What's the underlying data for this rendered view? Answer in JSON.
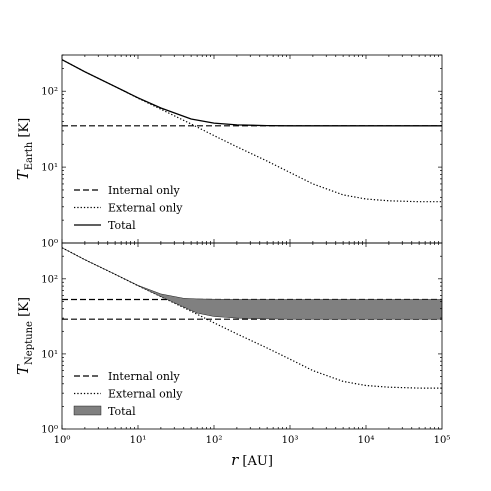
{
  "chart_data": [
    {
      "type": "line",
      "xscale": "log",
      "yscale": "log",
      "xlim": [
        1,
        100000
      ],
      "ylim": [
        1,
        300
      ],
      "ylabel": {
        "symbol": "T",
        "subscript": "Earth",
        "unit": "[K]"
      },
      "yticks": [
        {
          "value": 1,
          "label": "10⁰"
        },
        {
          "value": 10,
          "label": "10¹"
        },
        {
          "value": 100,
          "label": "10²"
        }
      ],
      "series": [
        {
          "name": "Internal only",
          "style": "dashed",
          "x": [
            1,
            100000
          ],
          "y": [
            35,
            35
          ]
        },
        {
          "name": "External only",
          "style": "dotted",
          "x": [
            1,
            2,
            5,
            10,
            20,
            50,
            100,
            200,
            500,
            1000,
            2000,
            5000,
            10000,
            20000,
            50000,
            100000
          ],
          "y": [
            260,
            180,
            115,
            81,
            58,
            37,
            26,
            18.5,
            12,
            8.5,
            6,
            4.3,
            3.8,
            3.6,
            3.5,
            3.5
          ]
        },
        {
          "name": "Total",
          "style": "solid",
          "x": [
            1,
            2,
            5,
            10,
            20,
            50,
            100,
            200,
            500,
            1000,
            10000,
            100000
          ],
          "y": [
            260,
            180,
            115,
            82,
            60,
            43,
            38,
            36,
            35.2,
            35,
            35,
            35
          ]
        }
      ],
      "legend": {
        "position": "lower-left"
      }
    },
    {
      "type": "line",
      "xscale": "log",
      "yscale": "log",
      "xlim": [
        1,
        100000
      ],
      "ylim": [
        1,
        300
      ],
      "xlabel": {
        "symbol": "r",
        "unit": "[AU]"
      },
      "ylabel": {
        "symbol": "T",
        "subscript": "Neptune",
        "unit": "[K]"
      },
      "xticks": [
        {
          "value": 1,
          "label": "10⁰"
        },
        {
          "value": 10,
          "label": "10¹"
        },
        {
          "value": 100,
          "label": "10²"
        },
        {
          "value": 1000,
          "label": "10³"
        },
        {
          "value": 10000,
          "label": "10⁴"
        },
        {
          "value": 100000,
          "label": "10⁵"
        }
      ],
      "yticks": [
        {
          "value": 1,
          "label": "10⁰"
        },
        {
          "value": 10,
          "label": "10¹"
        },
        {
          "value": 100,
          "label": "10²"
        }
      ],
      "series": [
        {
          "name": "Internal only",
          "style": "dashed",
          "bands": [
            {
              "x": [
                1,
                100000
              ],
              "y": [
                53,
                53
              ]
            },
            {
              "x": [
                1,
                100000
              ],
              "y": [
                29,
                29
              ]
            }
          ]
        },
        {
          "name": "External only",
          "style": "dotted",
          "x": [
            1,
            2,
            5,
            10,
            20,
            50,
            100,
            200,
            500,
            1000,
            2000,
            5000,
            10000,
            20000,
            50000,
            100000
          ],
          "y": [
            260,
            180,
            115,
            81,
            58,
            37,
            26,
            18.5,
            12,
            8.5,
            6,
            4.3,
            3.8,
            3.6,
            3.5,
            3.5
          ]
        },
        {
          "name": "Total",
          "style": "filled",
          "color": "#808080",
          "x": [
            1,
            2,
            5,
            10,
            20,
            40,
            60,
            100,
            200,
            500,
            1000,
            10000,
            100000
          ],
          "upper": [
            260,
            180,
            115,
            82,
            63,
            55,
            54,
            53.5,
            53,
            53,
            53,
            53,
            53
          ],
          "lower": [
            260,
            180,
            115,
            81,
            58,
            42,
            35,
            31.5,
            30,
            29.3,
            29,
            29,
            29
          ]
        }
      ],
      "legend": {
        "position": "lower-left"
      }
    }
  ]
}
